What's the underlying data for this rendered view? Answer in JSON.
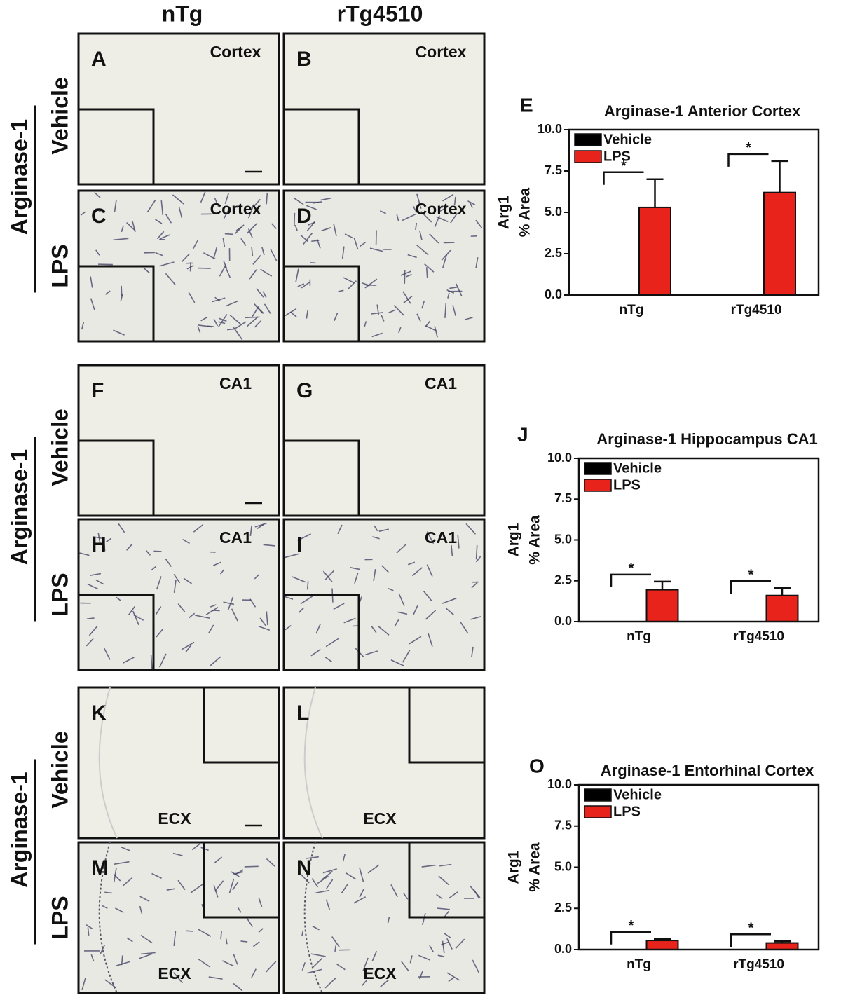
{
  "column_headers": [
    "nTg",
    "rTg4510"
  ],
  "row_groups": [
    {
      "label": "Arginase-1",
      "rows": [
        "Vehicle",
        "LPS"
      ]
    },
    {
      "label": "Arginase-1",
      "rows": [
        "Vehicle",
        "LPS"
      ]
    },
    {
      "label": "Arginase-1",
      "rows": [
        "Vehicle",
        "LPS"
      ]
    }
  ],
  "panels": [
    {
      "letter": "A",
      "region": "Cortex"
    },
    {
      "letter": "B",
      "region": "Cortex"
    },
    {
      "letter": "C",
      "region": "Cortex"
    },
    {
      "letter": "D",
      "region": "Cortex"
    },
    {
      "letter": "F",
      "region": "CA1"
    },
    {
      "letter": "G",
      "region": "CA1"
    },
    {
      "letter": "H",
      "region": "CA1"
    },
    {
      "letter": "I",
      "region": "CA1"
    },
    {
      "letter": "K",
      "region": "ECX"
    },
    {
      "letter": "L",
      "region": "ECX"
    },
    {
      "letter": "M",
      "region": "ECX"
    },
    {
      "letter": "N",
      "region": "ECX"
    }
  ],
  "chart_data": [
    {
      "type": "bar",
      "letter": "E",
      "title": "Arginase-1 Anterior Cortex",
      "ylabel": [
        "Arg1",
        "% Area"
      ],
      "categories": [
        "nTg",
        "rTg4510"
      ],
      "series": [
        {
          "name": "Vehicle",
          "color": "#000000",
          "values": [
            0,
            0
          ]
        },
        {
          "name": "LPS",
          "color": "#e8231c",
          "values": [
            5.3,
            6.2
          ],
          "errors": [
            1.7,
            1.9
          ]
        }
      ],
      "annotations": [
        "*",
        "*"
      ],
      "ylim": [
        0,
        10
      ],
      "yticks": [
        {
          "value": 0,
          "label": "0.0"
        },
        2.5,
        {
          "value": 5,
          "label": "5.0"
        },
        7.5,
        {
          "value": 10,
          "label": "10.0"
        }
      ]
    },
    {
      "type": "bar",
      "letter": "J",
      "title": "Arginase-1 Hippocampus CA1",
      "ylabel": [
        "Arg1",
        "% Area"
      ],
      "categories": [
        "nTg",
        "rTg4510"
      ],
      "series": [
        {
          "name": "Vehicle",
          "color": "#000000",
          "values": [
            0,
            0
          ]
        },
        {
          "name": "LPS",
          "color": "#e8231c",
          "values": [
            1.95,
            1.6
          ],
          "errors": [
            0.5,
            0.45
          ]
        }
      ],
      "annotations": [
        "*",
        "*"
      ],
      "ylim": [
        0,
        10
      ],
      "yticks": [
        {
          "value": 0,
          "label": "0.0"
        },
        2.5,
        {
          "value": 5,
          "label": "5.0"
        },
        7.5,
        {
          "value": 10,
          "label": "10.0"
        }
      ]
    },
    {
      "type": "bar",
      "letter": "O",
      "title": "Arginase-1 Entorhinal Cortex",
      "ylabel": [
        "Arg1",
        "% Area"
      ],
      "categories": [
        "nTg",
        "rTg4510"
      ],
      "series": [
        {
          "name": "Vehicle",
          "color": "#000000",
          "values": [
            0,
            0
          ]
        },
        {
          "name": "LPS",
          "color": "#e8231c",
          "values": [
            0.55,
            0.4
          ],
          "errors": [
            0.1,
            0.1
          ]
        }
      ],
      "annotations": [
        "*",
        "*"
      ],
      "ylim": [
        0,
        10
      ],
      "yticks": [
        {
          "value": 0,
          "label": "0.0"
        },
        2.5,
        {
          "value": 5,
          "label": "5.0"
        },
        7.5,
        {
          "value": 10,
          "label": "10.0"
        }
      ]
    }
  ]
}
